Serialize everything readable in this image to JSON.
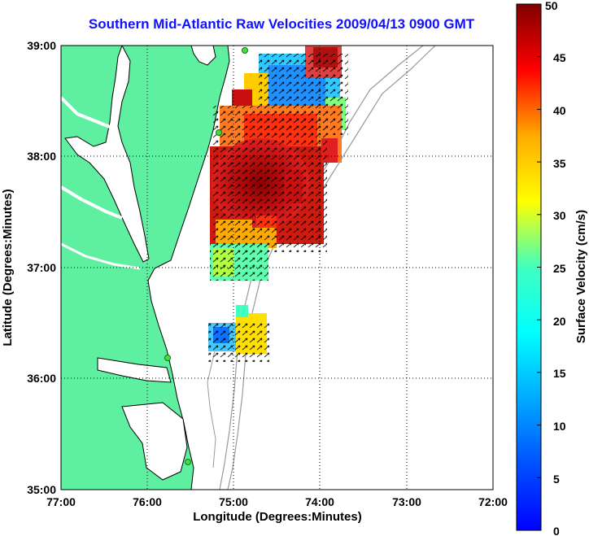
{
  "title": "Southern Mid-Atlantic Raw Velocities 2009/04/13 0900 GMT",
  "xlabel": "Longitude (Degrees:Minutes)",
  "ylabel": "Latitude (Degrees:Minutes)",
  "x_ticks": [
    "77:00",
    "76:00",
    "75:00",
    "74:00",
    "73:00",
    "72:00"
  ],
  "y_ticks": [
    "39:00",
    "38:00",
    "37:00",
    "36:00",
    "35:00"
  ],
  "colorbar": {
    "label": "Surface Velocity (cm/s)",
    "ticks": [
      "0",
      "5",
      "10",
      "15",
      "20",
      "25",
      "30",
      "35",
      "40",
      "45",
      "50"
    ],
    "range": [
      0,
      50
    ],
    "colormap": "jet"
  },
  "colors": {
    "title": "#1010ff",
    "land": "#5ef0a0",
    "coastline": "#000000",
    "bathymetry": "#999999",
    "radar_station": "#44dd44"
  },
  "map_extent": {
    "lon": [
      -77,
      -72
    ],
    "lat": [
      35,
      39
    ]
  }
}
